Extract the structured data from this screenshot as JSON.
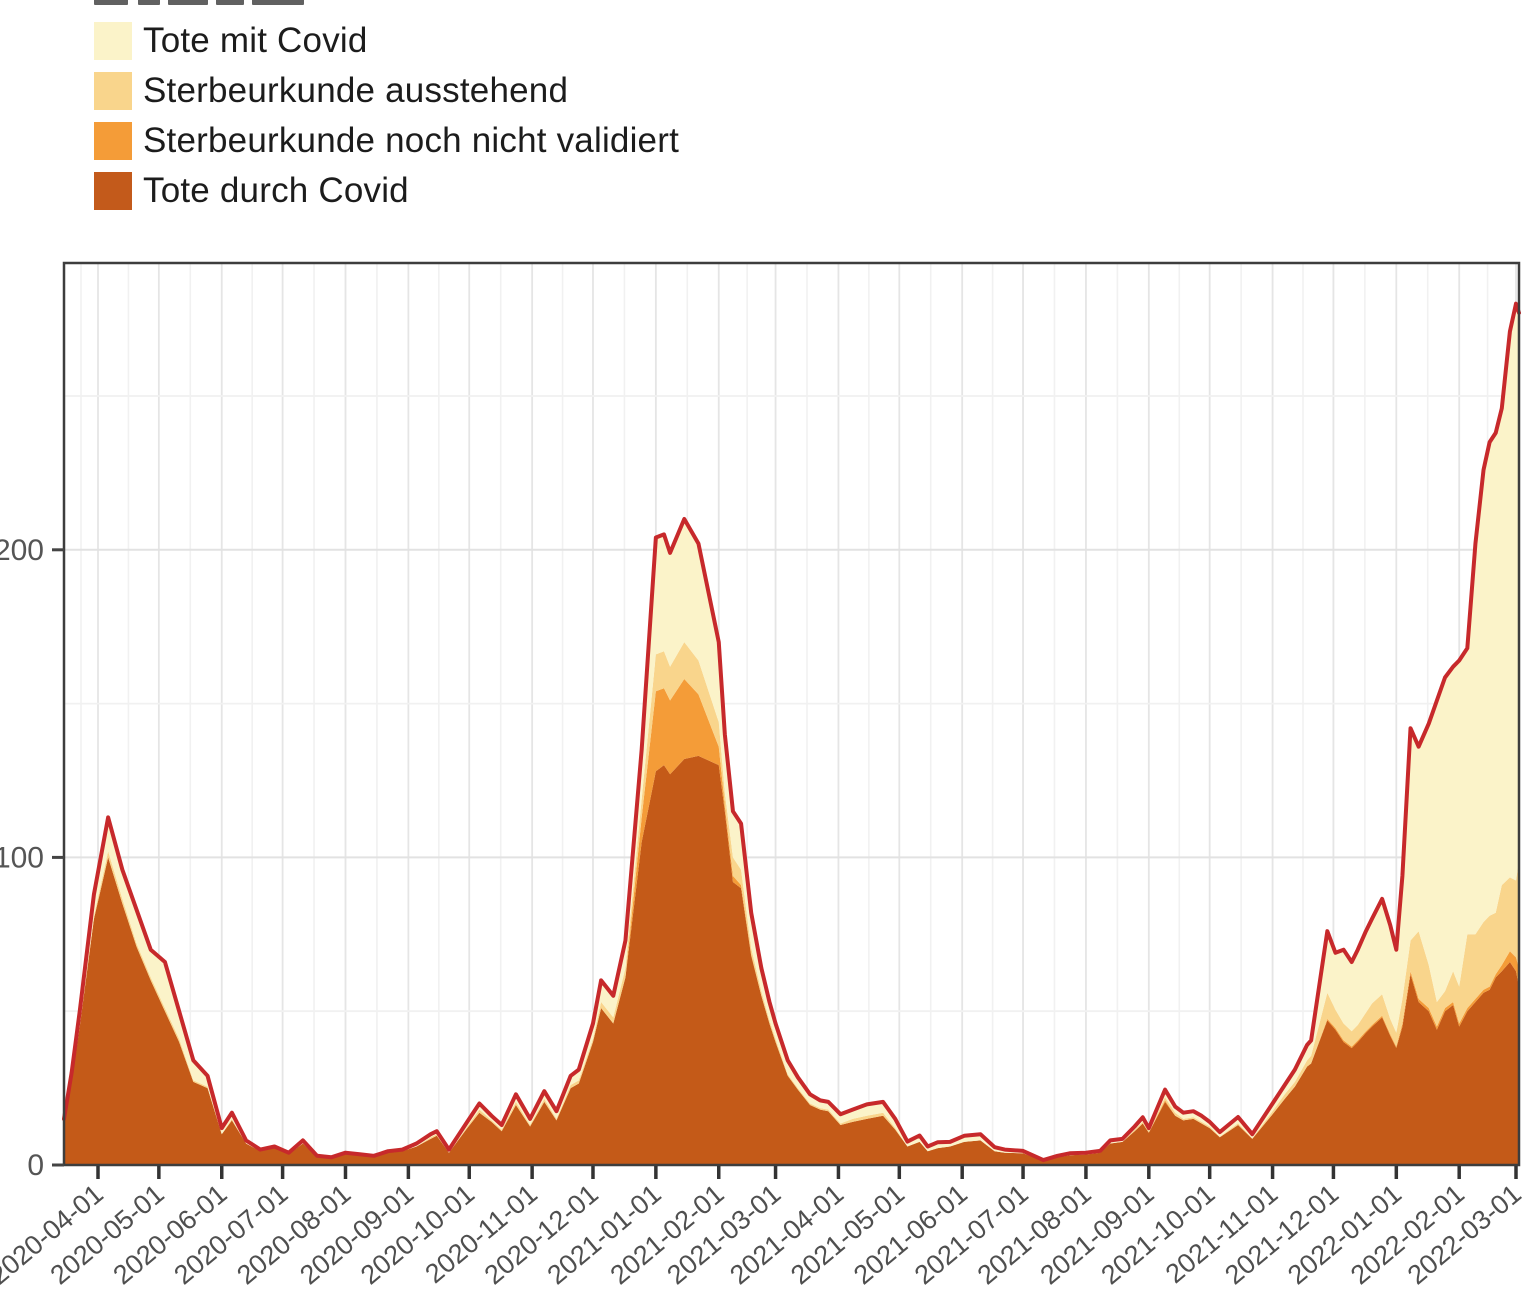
{
  "legend": {
    "items": [
      {
        "label": "Tote mit Covid",
        "color": "#FBF3C9"
      },
      {
        "label": "Sterbeurkunde ausstehend",
        "color": "#F9D58C"
      },
      {
        "label": "Sterbeurkunde noch nicht validiert",
        "color": "#F49C38"
      },
      {
        "label": "Tote durch Covid",
        "color": "#C35A1B"
      }
    ]
  },
  "axes": {
    "y_tick_labels": [
      "0",
      "100",
      "200"
    ],
    "x_tick_labels": [
      "2020-04-01",
      "2020-05-01",
      "2020-06-01",
      "2020-07-01",
      "2020-08-01",
      "2020-09-01",
      "2020-10-01",
      "2020-11-01",
      "2020-12-01",
      "2021-01-01",
      "2021-02-01",
      "2021-03-01",
      "2021-04-01",
      "2021-05-01",
      "2021-06-01",
      "2021-07-01",
      "2021-08-01",
      "2021-09-01",
      "2021-10-01",
      "2021-11-01",
      "2021-12-01",
      "2022-01-01",
      "2022-02-01",
      "2022-03-01"
    ]
  },
  "chart_data": {
    "type": "area",
    "stacked": true,
    "title": "",
    "xlabel": "",
    "ylabel": "",
    "x_type": "date",
    "x_range": [
      "2020-03-15",
      "2022-03-04"
    ],
    "ylim": [
      0,
      293
    ],
    "y_ticks": [
      0,
      100,
      200
    ],
    "grid": {
      "h_major": [
        100,
        200
      ],
      "h_minor": [
        50,
        150,
        250
      ],
      "vertical": "monthly-with-half-month-minor"
    },
    "legend_position": "top-left",
    "total_line": {
      "name": "Summe (rote Linie)",
      "color": "#C7292B",
      "width": 4
    },
    "series_order_bottom_to_top": [
      "Tote durch Covid",
      "Sterbeurkunde noch nicht validiert",
      "Sterbeurkunde ausstehend",
      "Tote mit Covid"
    ],
    "colors": {
      "Tote durch Covid": "#C45A18",
      "Sterbeurkunde noch nicht validiert": "#F49C38",
      "Sterbeurkunde ausstehend": "#F9D58C",
      "Tote mit Covid": "#FBF3C9"
    },
    "columns": [
      "date",
      "Tote durch Covid",
      "Sterbeurkunde noch nicht validiert",
      "Sterbeurkunde ausstehend",
      "Tote mit Covid"
    ],
    "points": [
      [
        "2020-03-15",
        14,
        0,
        0,
        1
      ],
      [
        "2020-03-19",
        27,
        0,
        0,
        3
      ],
      [
        "2020-03-23",
        45,
        0,
        0.5,
        4.5
      ],
      [
        "2020-03-30",
        80,
        0,
        1,
        7
      ],
      [
        "2020-04-06",
        100,
        0,
        2,
        11
      ],
      [
        "2020-04-13",
        85,
        0,
        1.5,
        9.5
      ],
      [
        "2020-04-20",
        71,
        0,
        1,
        11
      ],
      [
        "2020-04-27",
        60,
        0,
        1,
        9
      ],
      [
        "2020-05-04",
        50,
        0,
        1,
        15
      ],
      [
        "2020-05-11",
        40,
        0,
        1,
        9
      ],
      [
        "2020-05-18",
        27,
        0,
        0.5,
        6.5
      ],
      [
        "2020-05-25",
        25,
        0,
        0.5,
        3.5
      ],
      [
        "2020-06-01",
        10,
        0,
        0,
        2
      ],
      [
        "2020-06-06",
        14.5,
        0,
        0.5,
        2
      ],
      [
        "2020-06-13",
        7,
        0,
        0,
        1
      ],
      [
        "2020-06-20",
        4.5,
        0,
        0,
        0.5
      ],
      [
        "2020-06-27",
        5.5,
        0,
        0,
        0.5
      ],
      [
        "2020-07-04",
        3.5,
        0,
        0,
        0.5
      ],
      [
        "2020-07-11",
        7,
        0,
        0,
        1
      ],
      [
        "2020-07-18",
        2.5,
        0,
        0,
        0.5
      ],
      [
        "2020-07-25",
        2,
        0,
        0,
        0.5
      ],
      [
        "2020-08-01",
        3.5,
        0,
        0,
        0.5
      ],
      [
        "2020-08-08",
        3,
        0,
        0,
        0.5
      ],
      [
        "2020-08-15",
        2.5,
        0,
        0,
        0.5
      ],
      [
        "2020-08-22",
        4,
        0,
        0,
        0.5
      ],
      [
        "2020-08-29",
        4.5,
        0,
        0,
        0.5
      ],
      [
        "2020-09-05",
        6,
        0,
        0,
        1
      ],
      [
        "2020-09-12",
        8.5,
        0,
        0.5,
        1
      ],
      [
        "2020-09-15",
        9.5,
        0,
        0.5,
        1
      ],
      [
        "2020-09-21",
        4,
        0,
        0,
        1
      ],
      [
        "2020-09-30",
        12,
        0,
        0.5,
        1.5
      ],
      [
        "2020-10-06",
        17,
        0,
        1,
        2
      ],
      [
        "2020-10-12",
        14,
        0,
        0.5,
        1.5
      ],
      [
        "2020-10-17",
        11,
        0,
        0.5,
        1.5
      ],
      [
        "2020-10-24",
        19.5,
        0,
        1,
        2.5
      ],
      [
        "2020-10-31",
        12.5,
        0,
        0.5,
        2
      ],
      [
        "2020-11-07",
        20.5,
        0,
        1,
        2.5
      ],
      [
        "2020-11-13",
        14.5,
        0,
        0.5,
        2.5
      ],
      [
        "2020-11-20",
        25,
        0,
        1,
        3
      ],
      [
        "2020-11-24",
        26.5,
        0,
        1,
        3.5
      ],
      [
        "2020-12-01",
        40,
        0,
        1,
        5
      ],
      [
        "2020-12-05",
        51,
        0,
        2,
        7
      ],
      [
        "2020-12-11",
        46,
        0,
        2,
        7
      ],
      [
        "2020-12-17",
        61,
        0,
        3,
        9
      ],
      [
        "2020-12-25",
        105,
        8,
        6,
        16
      ],
      [
        "2021-01-01",
        128,
        26,
        12,
        38
      ],
      [
        "2021-01-05",
        130,
        25,
        12,
        38
      ],
      [
        "2021-01-08",
        127,
        24,
        11,
        37
      ],
      [
        "2021-01-15",
        132,
        26,
        12,
        40
      ],
      [
        "2021-01-22",
        133,
        20,
        11,
        38
      ],
      [
        "2021-02-01",
        130,
        6,
        8,
        26
      ],
      [
        "2021-02-04",
        115,
        2,
        4,
        19
      ],
      [
        "2021-02-08",
        92,
        2,
        6,
        15
      ],
      [
        "2021-02-12",
        90,
        1,
        5,
        15
      ],
      [
        "2021-02-17",
        68,
        0.5,
        2,
        11.5
      ],
      [
        "2021-02-22",
        55,
        0,
        1.5,
        7.5
      ],
      [
        "2021-02-26",
        46,
        0,
        1,
        6
      ],
      [
        "2021-03-01",
        40,
        0,
        1,
        5
      ],
      [
        "2021-03-07",
        29,
        0,
        0.5,
        4.5
      ],
      [
        "2021-03-12",
        24.5,
        0,
        0.5,
        3.5
      ],
      [
        "2021-03-18",
        19.5,
        0,
        0.5,
        3
      ],
      [
        "2021-03-23",
        18,
        0,
        0.5,
        2.5
      ],
      [
        "2021-03-27",
        17.5,
        0,
        0.5,
        2.5
      ],
      [
        "2021-04-02",
        13,
        0,
        0.5,
        3
      ],
      [
        "2021-04-08",
        14,
        0,
        1,
        3
      ],
      [
        "2021-04-15",
        15,
        0,
        1,
        3.7
      ],
      [
        "2021-04-23",
        16,
        0,
        1,
        3.5
      ],
      [
        "2021-04-29",
        11.5,
        0,
        0.5,
        3
      ],
      [
        "2021-05-05",
        6,
        0,
        0,
        1.6
      ],
      [
        "2021-05-11",
        7.5,
        0,
        0.1,
        2
      ],
      [
        "2021-05-15",
        4.5,
        0,
        0,
        1.5
      ],
      [
        "2021-05-20",
        5.5,
        0,
        0,
        1.9
      ],
      [
        "2021-05-26",
        6,
        0,
        0,
        1.5
      ],
      [
        "2021-06-02",
        7.5,
        0,
        0,
        2
      ],
      [
        "2021-06-10",
        8,
        0,
        0,
        2
      ],
      [
        "2021-06-17",
        4.5,
        0,
        0,
        1.3
      ],
      [
        "2021-06-22",
        4,
        0,
        0,
        1
      ],
      [
        "2021-07-01",
        3.8,
        0,
        0,
        0.8
      ],
      [
        "2021-07-08",
        2,
        0,
        0,
        0.5
      ],
      [
        "2021-07-11",
        1.3,
        0,
        0,
        0.3
      ],
      [
        "2021-07-18",
        2.5,
        0,
        0,
        0.5
      ],
      [
        "2021-07-24",
        3.2,
        0,
        0,
        0.6
      ],
      [
        "2021-08-01",
        3.4,
        0,
        0,
        0.6
      ],
      [
        "2021-08-08",
        4,
        0,
        0,
        0.6
      ],
      [
        "2021-08-13",
        7,
        0,
        0,
        1
      ],
      [
        "2021-08-19",
        7.5,
        0,
        0,
        1
      ],
      [
        "2021-08-25",
        11,
        0,
        0.5,
        1
      ],
      [
        "2021-08-29",
        13.5,
        0,
        0.5,
        1.5
      ],
      [
        "2021-09-01",
        10.5,
        0,
        0.5,
        1
      ],
      [
        "2021-09-09",
        20.5,
        0.5,
        1,
        2.5
      ],
      [
        "2021-09-14",
        16,
        0,
        1,
        2
      ],
      [
        "2021-09-18",
        14.5,
        0,
        0.5,
        2
      ],
      [
        "2021-09-23",
        15,
        0,
        0.5,
        2
      ],
      [
        "2021-09-27",
        13.5,
        0,
        0.5,
        2
      ],
      [
        "2021-10-01",
        12,
        0,
        0.5,
        1.5
      ],
      [
        "2021-10-06",
        9,
        0,
        0.2,
        1.5
      ],
      [
        "2021-10-15",
        13,
        0,
        0.6,
        2
      ],
      [
        "2021-10-22",
        8.5,
        0,
        0.2,
        1.3
      ],
      [
        "2021-11-01",
        16.5,
        0,
        1,
        2.5
      ],
      [
        "2021-11-07",
        21.5,
        0,
        1.5,
        3
      ],
      [
        "2021-11-12",
        25.5,
        0,
        1.5,
        4
      ],
      [
        "2021-11-18",
        32,
        0,
        2,
        5
      ],
      [
        "2021-11-20",
        33,
        0,
        2.5,
        5
      ],
      [
        "2021-11-28",
        47,
        0.5,
        8.5,
        20
      ],
      [
        "2021-12-02",
        44,
        0.5,
        6,
        18.5
      ],
      [
        "2021-12-06",
        40,
        0.5,
        5.5,
        24
      ],
      [
        "2021-12-10",
        38,
        0.5,
        5,
        22.5
      ],
      [
        "2021-12-13",
        40,
        0.5,
        5,
        24.5
      ],
      [
        "2021-12-17",
        43,
        0.5,
        6,
        26.5
      ],
      [
        "2021-12-20",
        45,
        0.5,
        7,
        27.5
      ],
      [
        "2021-12-25",
        48,
        0.5,
        7,
        31
      ],
      [
        "2021-12-29",
        42,
        0.5,
        5,
        30.5
      ],
      [
        "2022-01-01",
        38,
        0.5,
        4.5,
        27
      ],
      [
        "2022-01-04",
        45,
        1,
        8,
        40
      ],
      [
        "2022-01-08",
        62,
        1,
        10,
        69
      ],
      [
        "2022-01-12",
        53,
        1,
        22,
        60
      ],
      [
        "2022-01-17",
        50,
        1,
        14,
        78.5
      ],
      [
        "2022-01-21",
        44,
        1,
        8,
        98
      ],
      [
        "2022-01-25",
        50,
        1,
        5.5,
        102
      ],
      [
        "2022-01-29",
        52,
        1,
        10,
        99
      ],
      [
        "2022-02-01",
        45,
        1,
        12,
        106
      ],
      [
        "2022-02-05",
        50,
        1,
        24,
        93
      ],
      [
        "2022-02-09",
        53,
        1,
        21,
        127
      ],
      [
        "2022-02-13",
        56,
        1,
        22,
        147
      ],
      [
        "2022-02-16",
        57,
        1,
        23,
        154
      ],
      [
        "2022-02-19",
        61,
        1,
        20,
        156
      ],
      [
        "2022-02-22",
        63,
        2,
        26,
        155
      ],
      [
        "2022-02-26",
        66,
        3.5,
        24,
        177.5
      ],
      [
        "2022-03-01",
        63,
        4.5,
        25,
        187.5
      ],
      [
        "2022-03-04",
        58,
        6,
        35,
        178
      ]
    ]
  }
}
